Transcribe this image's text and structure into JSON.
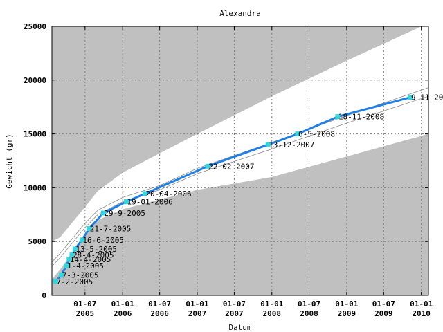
{
  "chart_data": {
    "type": "line",
    "title": "Alexandra",
    "xlabel": "Datum",
    "ylabel": "Gewicht (gr)",
    "ylim": [
      0,
      25000
    ],
    "yticks": [
      0,
      5000,
      10000,
      15000,
      20000,
      25000
    ],
    "xlim": [
      "2005-01-20",
      "2010-02-05"
    ],
    "xticks": [
      {
        "date": "2005-07-01",
        "line1": "01-07",
        "line2": "2005"
      },
      {
        "date": "2006-01-01",
        "line1": "01-01",
        "line2": "2006"
      },
      {
        "date": "2006-07-01",
        "line1": "01-07",
        "line2": "2006"
      },
      {
        "date": "2007-01-01",
        "line1": "01-01",
        "line2": "2007"
      },
      {
        "date": "2007-07-01",
        "line1": "01-07",
        "line2": "2007"
      },
      {
        "date": "2008-01-01",
        "line1": "01-01",
        "line2": "2008"
      },
      {
        "date": "2008-07-01",
        "line1": "01-07",
        "line2": "2008"
      },
      {
        "date": "2009-01-01",
        "line1": "01-01",
        "line2": "2009"
      },
      {
        "date": "2009-07-01",
        "line1": "01-07",
        "line2": "2009"
      },
      {
        "date": "2010-01-01",
        "line1": "01-01",
        "line2": "2010"
      }
    ],
    "grid": true,
    "series": [
      {
        "color": "#1e7fe6",
        "marker_color": "#33d6dc",
        "points": [
          {
            "date": "2005-02-07",
            "y": 1300,
            "label": "7-2-2005"
          },
          {
            "date": "2005-03-07",
            "y": 1900,
            "label": "7-3-2005"
          },
          {
            "date": "2005-04-01",
            "y": 2750,
            "label": "1-4-2005"
          },
          {
            "date": "2005-04-14",
            "y": 3350,
            "label": "14-4-2005"
          },
          {
            "date": "2005-04-28",
            "y": 3750,
            "label": "28-4-2005"
          },
          {
            "date": "2005-05-13",
            "y": 4300,
            "label": "13-5-2005"
          },
          {
            "date": "2005-06-16",
            "y": 5150,
            "label": "16-6-2005"
          },
          {
            "date": "2005-07-21",
            "y": 6200,
            "label": "21-7-2005"
          },
          {
            "date": "2005-09-29",
            "y": 7650,
            "label": "29-9-2005"
          },
          {
            "date": "2006-01-19",
            "y": 8700,
            "label": "19-01-2006"
          },
          {
            "date": "2006-04-20",
            "y": 9450,
            "label": "20-04-2006"
          },
          {
            "date": "2007-02-22",
            "y": 12000,
            "label": "22-02-2007"
          },
          {
            "date": "2007-12-13",
            "y": 14000,
            "label": "13-12-2007"
          },
          {
            "date": "2008-05-06",
            "y": 15000,
            "label": "6-5-2008"
          },
          {
            "date": "2008-11-18",
            "y": 16600,
            "label": "18-11-2008"
          },
          {
            "date": "2009-11-09",
            "y": 18400,
            "label": "9-11-20"
          }
        ]
      }
    ],
    "reference_band": {
      "fill": "#c0c0c0",
      "upper": [
        {
          "date": "2005-01-20",
          "y": 5000
        },
        {
          "date": "2005-03-01",
          "y": 5400
        },
        {
          "date": "2005-05-01",
          "y": 6800
        },
        {
          "date": "2005-07-01",
          "y": 8200
        },
        {
          "date": "2005-09-01",
          "y": 9700
        },
        {
          "date": "2006-01-01",
          "y": 11400
        },
        {
          "date": "2006-07-01",
          "y": 13200
        },
        {
          "date": "2007-01-01",
          "y": 15000
        },
        {
          "date": "2008-01-01",
          "y": 18500
        },
        {
          "date": "2009-01-01",
          "y": 21800
        },
        {
          "date": "2010-02-05",
          "y": 25300
        }
      ],
      "lower": [
        {
          "date": "2005-01-20",
          "y": 1500
        },
        {
          "date": "2005-03-01",
          "y": 2400
        },
        {
          "date": "2005-05-01",
          "y": 4000
        },
        {
          "date": "2005-07-01",
          "y": 5700
        },
        {
          "date": "2005-09-01",
          "y": 7000
        },
        {
          "date": "2006-01-01",
          "y": 8000
        },
        {
          "date": "2006-07-01",
          "y": 8900
        },
        {
          "date": "2007-01-01",
          "y": 9800
        },
        {
          "date": "2008-01-01",
          "y": 11000
        },
        {
          "date": "2009-01-01",
          "y": 12900
        },
        {
          "date": "2010-02-05",
          "y": 15000
        }
      ]
    },
    "reference_lines": {
      "color": "#8a8a8a",
      "curves": [
        [
          {
            "date": "2005-01-20",
            "y": 3100
          },
          {
            "date": "2005-03-01",
            "y": 3900
          },
          {
            "date": "2005-05-01",
            "y": 5300
          },
          {
            "date": "2005-07-01",
            "y": 6700
          },
          {
            "date": "2005-09-01",
            "y": 7900
          },
          {
            "date": "2006-01-01",
            "y": 9100
          },
          {
            "date": "2006-07-01",
            "y": 10200
          },
          {
            "date": "2007-01-01",
            "y": 11800
          },
          {
            "date": "2008-01-01",
            "y": 14200
          },
          {
            "date": "2009-01-01",
            "y": 16700
          },
          {
            "date": "2010-02-05",
            "y": 19300
          }
        ],
        [
          {
            "date": "2005-01-20",
            "y": 2700
          },
          {
            "date": "2005-03-01",
            "y": 3500
          },
          {
            "date": "2005-05-01",
            "y": 4900
          },
          {
            "date": "2005-07-01",
            "y": 6300
          },
          {
            "date": "2005-09-01",
            "y": 7500
          },
          {
            "date": "2006-01-01",
            "y": 8700
          },
          {
            "date": "2006-07-01",
            "y": 9800
          },
          {
            "date": "2007-01-01",
            "y": 11300
          },
          {
            "date": "2008-01-01",
            "y": 13600
          },
          {
            "date": "2009-01-01",
            "y": 16000
          },
          {
            "date": "2010-02-05",
            "y": 18500
          }
        ]
      ]
    }
  }
}
